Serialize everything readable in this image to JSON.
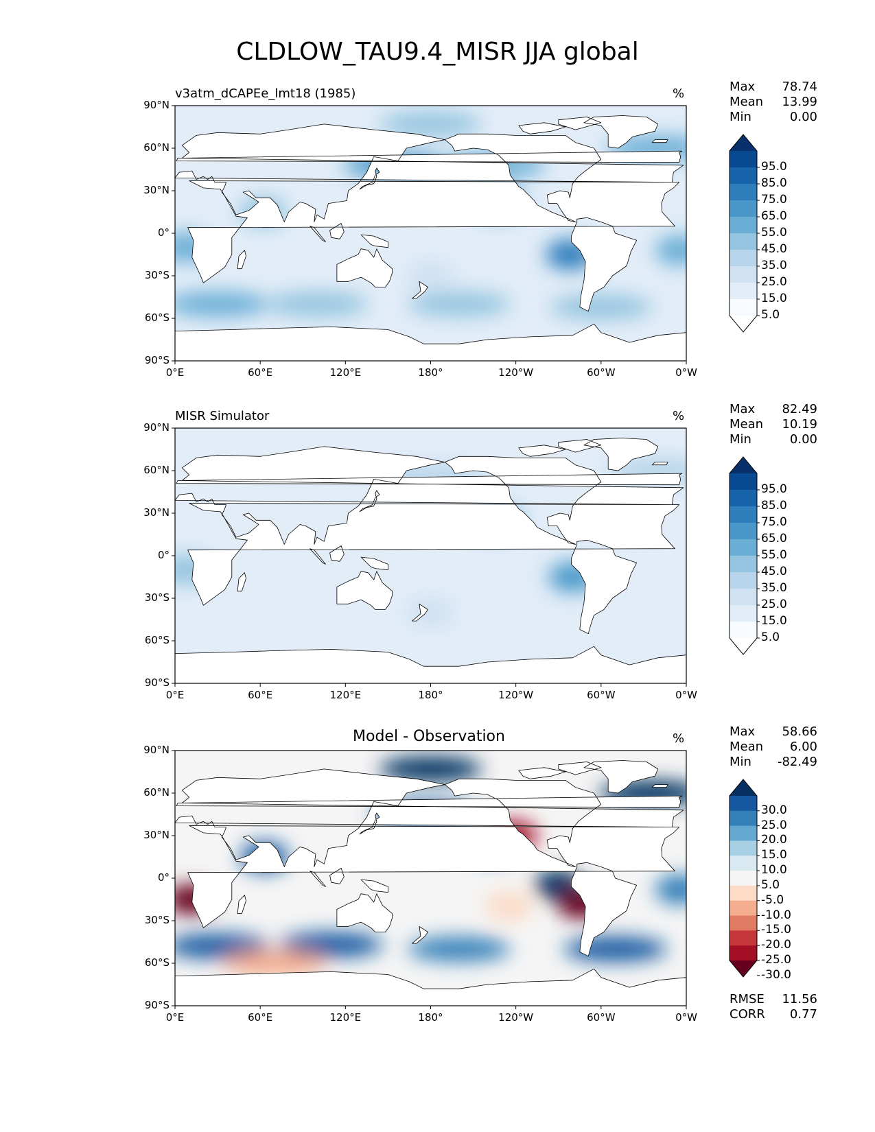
{
  "title": "CLDLOW_TAU9.4_MISR JJA global",
  "colors": {
    "seq": [
      "#f7fbff",
      "#e2edf8",
      "#d0e1f2",
      "#b7d4ea",
      "#94c4df",
      "#6aaed6",
      "#4a98c9",
      "#2e7ebc",
      "#1764ab",
      "#084a91",
      "#08306b"
    ],
    "div": [
      "#67001f",
      "#a50f26",
      "#c5373a",
      "#e17a62",
      "#f4ad8e",
      "#fcdbc7",
      "#f5f5f5",
      "#d9e9f1",
      "#a7d0e4",
      "#65a8cf",
      "#3480b9",
      "#1658a0",
      "#053061"
    ],
    "land": "#ffffff",
    "coast": "#000000"
  },
  "axes": {
    "x_ticks": [
      "0°E",
      "60°E",
      "120°E",
      "180°",
      "120°W",
      "60°W",
      "0°W"
    ],
    "y_ticks": [
      "90°N",
      "60°N",
      "30°N",
      "0°",
      "30°S",
      "60°S",
      "90°S"
    ]
  },
  "panels": [
    {
      "name": "model",
      "label": "v3atm_dCAPEe_lmt18 (1985)",
      "unit": "%",
      "stats": {
        "max_label": "Max",
        "max": "78.74",
        "mean_label": "Mean",
        "mean": "13.99",
        "min_label": "Min",
        "min": "0.00"
      },
      "colorbar_labels": [
        "95.0",
        "85.0",
        "75.0",
        "65.0",
        "55.0",
        "45.0",
        "35.0",
        "25.0",
        "15.0",
        "5.0"
      ]
    },
    {
      "name": "obs",
      "label": "MISR Simulator",
      "unit": "%",
      "stats": {
        "max_label": "Max",
        "max": "82.49",
        "mean_label": "Mean",
        "mean": "10.19",
        "min_label": "Min",
        "min": "0.00"
      },
      "colorbar_labels": [
        "95.0",
        "85.0",
        "75.0",
        "65.0",
        "55.0",
        "45.0",
        "35.0",
        "25.0",
        "15.0",
        "5.0"
      ]
    },
    {
      "name": "diff",
      "label": "Model - Observation",
      "unit": "%",
      "stats": {
        "max_label": "Max",
        "max": "58.66",
        "mean_label": "Mean",
        "mean": "6.00",
        "min_label": "Min",
        "min": "-82.49"
      },
      "colorbar_labels": [
        "30.0",
        "25.0",
        "20.0",
        "15.0",
        "10.0",
        "5.0",
        "-5.0",
        "-10.0",
        "-15.0",
        "-20.0",
        "-25.0",
        "-30.0"
      ],
      "metrics": {
        "rmse_label": "RMSE",
        "rmse": "11.56",
        "corr_label": "CORR",
        "corr": "0.77"
      }
    }
  ],
  "chart_data": [
    {
      "type": "heatmap",
      "title": "v3atm_dCAPEe_lmt18 (1985)",
      "units": "%",
      "xlim": [
        0,
        360
      ],
      "ylim": [
        -90,
        90
      ],
      "levels": [
        0,
        5,
        15,
        25,
        35,
        45,
        55,
        65,
        75,
        85,
        95
      ],
      "max": 78.74,
      "mean": 13.99,
      "min": 0.0,
      "regions": [
        {
          "lon": 180,
          "lat": 77,
          "value": 40
        },
        {
          "lon": 340,
          "lat": 60,
          "value": 50
        },
        {
          "lon": 155,
          "lat": 48,
          "value": 55
        },
        {
          "lon": 225,
          "lat": 48,
          "value": 45
        },
        {
          "lon": 228,
          "lat": 22,
          "value": 55
        },
        {
          "lon": 62,
          "lat": 15,
          "value": 40
        },
        {
          "lon": 278,
          "lat": -15,
          "value": 65
        },
        {
          "lon": 8,
          "lat": -10,
          "value": 50
        },
        {
          "lon": 355,
          "lat": -12,
          "value": 45
        },
        {
          "lon": 30,
          "lat": -50,
          "value": 45
        },
        {
          "lon": 100,
          "lat": -50,
          "value": 40
        },
        {
          "lon": 200,
          "lat": -50,
          "value": 40
        },
        {
          "lon": 300,
          "lat": -52,
          "value": 40
        },
        {
          "lon": 180,
          "lat": -30,
          "value": 20
        }
      ]
    },
    {
      "type": "heatmap",
      "title": "MISR Simulator",
      "units": "%",
      "xlim": [
        0,
        360
      ],
      "ylim": [
        -90,
        90
      ],
      "levels": [
        0,
        5,
        15,
        25,
        35,
        45,
        55,
        65,
        75,
        85,
        95
      ],
      "max": 82.49,
      "mean": 10.19,
      "min": 0.0,
      "regions": [
        {
          "lon": 180,
          "lat": 55,
          "value": 25
        },
        {
          "lon": 228,
          "lat": 24,
          "value": 45
        },
        {
          "lon": 280,
          "lat": -15,
          "value": 60
        },
        {
          "lon": 8,
          "lat": -10,
          "value": 40
        },
        {
          "lon": 340,
          "lat": 60,
          "value": 25
        },
        {
          "lon": 180,
          "lat": -40,
          "value": 20
        }
      ]
    },
    {
      "type": "heatmap",
      "title": "Model - Observation",
      "units": "%",
      "xlim": [
        0,
        360
      ],
      "ylim": [
        -90,
        90
      ],
      "levels": [
        -30,
        -25,
        -20,
        -15,
        -10,
        -5,
        5,
        10,
        15,
        20,
        25,
        30
      ],
      "max": 58.66,
      "mean": 6.0,
      "min": -82.49,
      "rmse": 11.56,
      "corr": 0.77,
      "regions": [
        {
          "lon": 180,
          "lat": 77,
          "value": 35
        },
        {
          "lon": 335,
          "lat": 60,
          "value": 30
        },
        {
          "lon": 175,
          "lat": 45,
          "value": 25
        },
        {
          "lon": 225,
          "lat": 22,
          "value": 20
        },
        {
          "lon": 63,
          "lat": 15,
          "value": 25
        },
        {
          "lon": 270,
          "lat": -5,
          "value": 35
        },
        {
          "lon": 355,
          "lat": -8,
          "value": 20
        },
        {
          "lon": 30,
          "lat": -48,
          "value": 25
        },
        {
          "lon": 110,
          "lat": -47,
          "value": 25
        },
        {
          "lon": 200,
          "lat": -50,
          "value": 20
        },
        {
          "lon": 310,
          "lat": -50,
          "value": 25
        },
        {
          "lon": 238,
          "lat": 30,
          "value": -30
        },
        {
          "lon": 286,
          "lat": -18,
          "value": -35
        },
        {
          "lon": 11,
          "lat": -15,
          "value": -35
        },
        {
          "lon": 70,
          "lat": -60,
          "value": -12
        },
        {
          "lon": 235,
          "lat": -20,
          "value": -8
        }
      ]
    }
  ]
}
